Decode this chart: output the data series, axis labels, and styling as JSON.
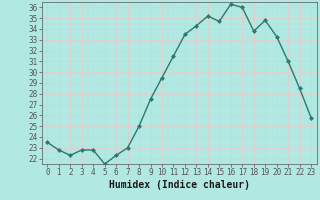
{
  "x": [
    0,
    1,
    2,
    3,
    4,
    5,
    6,
    7,
    8,
    9,
    10,
    11,
    12,
    13,
    14,
    15,
    16,
    17,
    18,
    19,
    20,
    21,
    22,
    23
  ],
  "y": [
    23.5,
    22.8,
    22.3,
    22.8,
    22.8,
    21.5,
    22.3,
    23.0,
    25.0,
    27.5,
    29.5,
    31.5,
    33.5,
    34.3,
    35.2,
    34.7,
    36.3,
    36.0,
    33.8,
    34.8,
    33.3,
    31.0,
    28.5,
    25.8
  ],
  "line_color": "#2a7a70",
  "marker": "D",
  "marker_size": 2,
  "bg_color": "#b2e8e2",
  "grid_color": "#e8c8c8",
  "xlabel": "Humidex (Indice chaleur)",
  "ylim": [
    21.5,
    36.5
  ],
  "xlim": [
    -0.5,
    23.5
  ],
  "yticks": [
    22,
    23,
    24,
    25,
    26,
    27,
    28,
    29,
    30,
    31,
    32,
    33,
    34,
    35,
    36
  ],
  "xticks": [
    0,
    1,
    2,
    3,
    4,
    5,
    6,
    7,
    8,
    9,
    10,
    11,
    12,
    13,
    14,
    15,
    16,
    17,
    18,
    19,
    20,
    21,
    22,
    23
  ],
  "tick_fontsize": 5.5,
  "label_fontsize": 7,
  "linewidth": 1.0,
  "spine_color": "#555555"
}
